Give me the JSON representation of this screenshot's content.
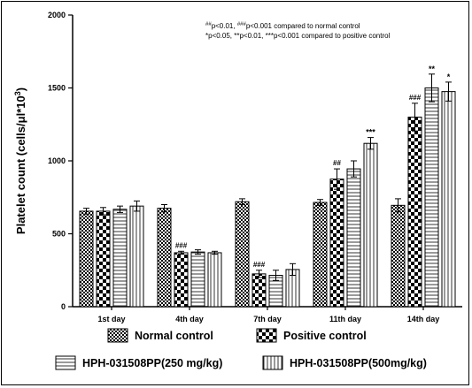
{
  "chart_data": {
    "type": "bar",
    "ylabel_main": "Platelet count (cells/",
    "ylabel_mu": "μ",
    "ylabel_rest": "l*10",
    "ylabel_sup": "3",
    "ylabel_close": ")",
    "ylim": [
      0,
      2000
    ],
    "yticks": [
      "0",
      "500",
      "1000",
      "1500",
      "2000"
    ],
    "categories": [
      "1st day",
      "4th day",
      "7th day",
      "11th day",
      "14th day"
    ],
    "series": [
      {
        "name": "Normal control",
        "pattern": "checker-fine",
        "values": [
          655,
          675,
          720,
          715,
          695
        ],
        "errors": [
          20,
          25,
          20,
          20,
          45
        ],
        "marks": [
          "",
          "",
          "",
          "",
          ""
        ]
      },
      {
        "name": "Positive control",
        "pattern": "checker-coarse",
        "values": [
          655,
          370,
          225,
          875,
          1300
        ],
        "errors": [
          25,
          10,
          25,
          70,
          95
        ],
        "marks": [
          "",
          "###",
          "###",
          "##",
          "###"
        ]
      },
      {
        "name": "HPH-031508PP(250 mg/kg)",
        "pattern": "hlines",
        "values": [
          668,
          375,
          215,
          945,
          1500
        ],
        "errors": [
          22,
          15,
          35,
          55,
          95
        ],
        "marks": [
          "",
          "",
          "",
          "",
          "**"
        ]
      },
      {
        "name": "HPH-031508PP(500mg/kg)",
        "pattern": "vlines",
        "values": [
          690,
          370,
          255,
          1120,
          1475
        ],
        "errors": [
          35,
          10,
          40,
          40,
          65
        ],
        "marks": [
          "",
          "",
          "",
          "***",
          "*"
        ]
      }
    ],
    "annotations": {
      "line1_sup": "##",
      "line1_a": "p<0.01, ",
      "line1_sup2": "###",
      "line1_b": "p<0.001 compared to normal control",
      "line2": "*p<0.05, **p<0.01, ***p<0.001 compared to positive control"
    },
    "legend_position": "bottom",
    "grid": false
  }
}
